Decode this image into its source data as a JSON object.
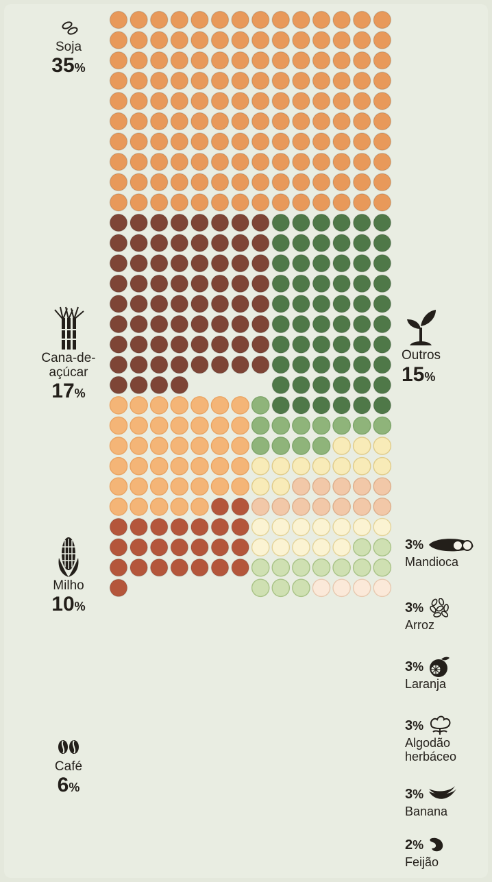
{
  "chart_data": {
    "type": "waffle",
    "grid": {
      "columns": 14,
      "rows": 29,
      "cells_per_percent": 4
    },
    "segments": [
      {
        "name": "Soja",
        "value_label": "35",
        "value": 35,
        "color": "#e8995a",
        "icon": "soybean-icon"
      },
      {
        "name": "Cana-de-açúcar",
        "name_lines": [
          "Cana-de-",
          "açúcar"
        ],
        "value_label": "17",
        "value": 17,
        "color": "#7e4536",
        "icon": "sugarcane-icon"
      },
      {
        "name": "Outros",
        "value_label": "15",
        "value": 15,
        "color": "#4f7848",
        "icon": "sprout-icon"
      },
      {
        "name": "Milho",
        "value_label": "10",
        "value": 10,
        "color": "#f4b577",
        "icon": "corn-icon"
      },
      {
        "name": "Café",
        "value_label": "6",
        "value": 6,
        "color": "#b4563b",
        "icon": "coffee-bean-icon"
      },
      {
        "name": "Mandioca",
        "value_label": "3",
        "value": 3,
        "color": "#8fb47a",
        "icon": "cassava-icon"
      },
      {
        "name": "Arroz",
        "value_label": "3",
        "value": 3,
        "color": "#f8ebb8",
        "icon": "rice-icon"
      },
      {
        "name": "Laranja",
        "value_label": "3",
        "value": 3,
        "color": "#f2c8a8",
        "icon": "orange-fruit-icon"
      },
      {
        "name": "Algodão herbáceo",
        "name_lines": [
          "Algodão",
          "herbáceo"
        ],
        "value_label": "3",
        "value": 3,
        "color": "#fbf3d2",
        "icon": "cotton-icon"
      },
      {
        "name": "Banana",
        "value_label": "3",
        "value": 3,
        "color": "#cfe0b2",
        "icon": "banana-icon"
      },
      {
        "name": "Feijão",
        "value_label": "2",
        "value": 2,
        "color": "#fbe9d9",
        "icon": "bean-icon"
      }
    ],
    "percent_symbol": "%"
  }
}
